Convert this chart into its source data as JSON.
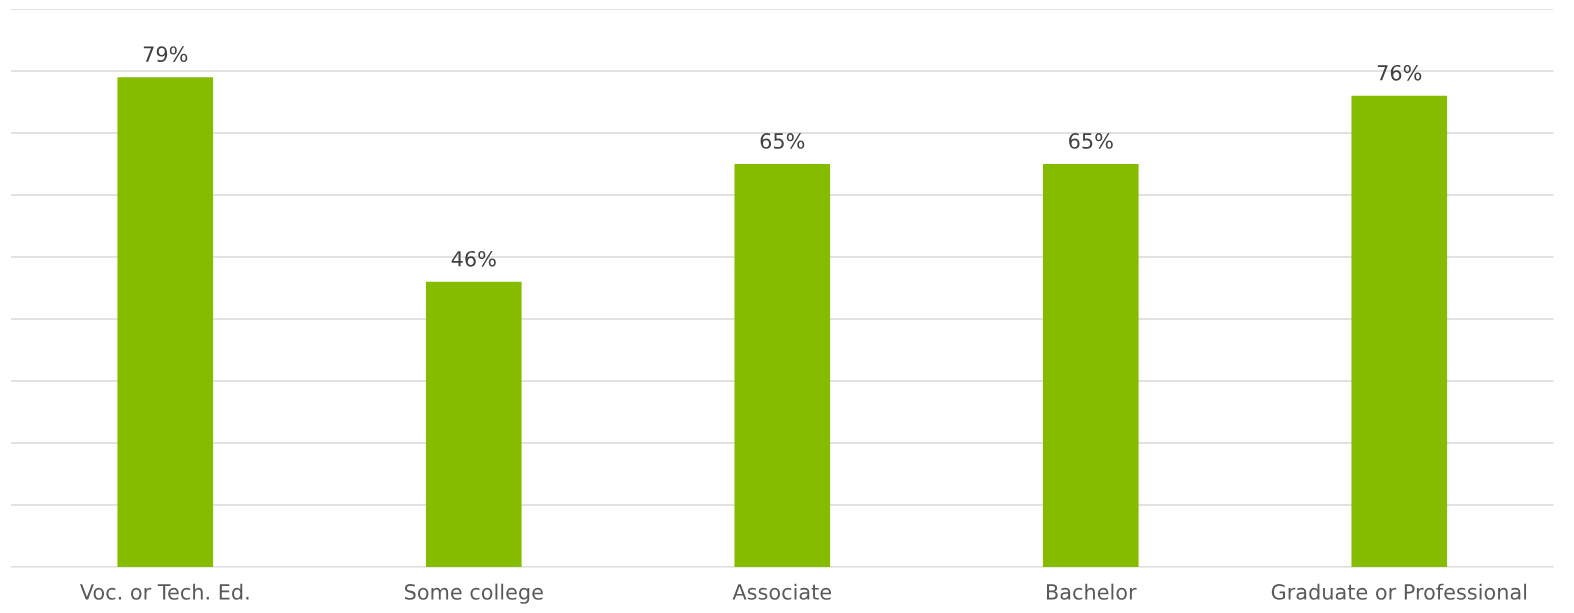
{
  "chart_data": {
    "type": "bar",
    "categories": [
      "Voc. or Tech. Ed.",
      "Some college",
      "Associate",
      "Bachelor",
      "Graduate or Professional"
    ],
    "values": [
      79,
      46,
      65,
      65,
      76
    ],
    "value_labels": [
      "79%",
      "46%",
      "65%",
      "65%",
      "76%"
    ],
    "color": "#86bc00",
    "ylim": [
      0,
      90
    ],
    "yticks": [
      {
        "value": 0,
        "label": null
      },
      {
        "value": 10,
        "label": null
      },
      {
        "value": 20,
        "label": null
      },
      {
        "value": 30,
        "label": null
      },
      {
        "value": 40,
        "label": null
      },
      {
        "value": 50,
        "label": null
      },
      {
        "value": 60,
        "label": null
      },
      {
        "value": 70,
        "label": null
      },
      {
        "value": 80,
        "label": null
      },
      {
        "value": 90,
        "label": null
      }
    ],
    "tick_labels": "x",
    "grid": "y"
  }
}
